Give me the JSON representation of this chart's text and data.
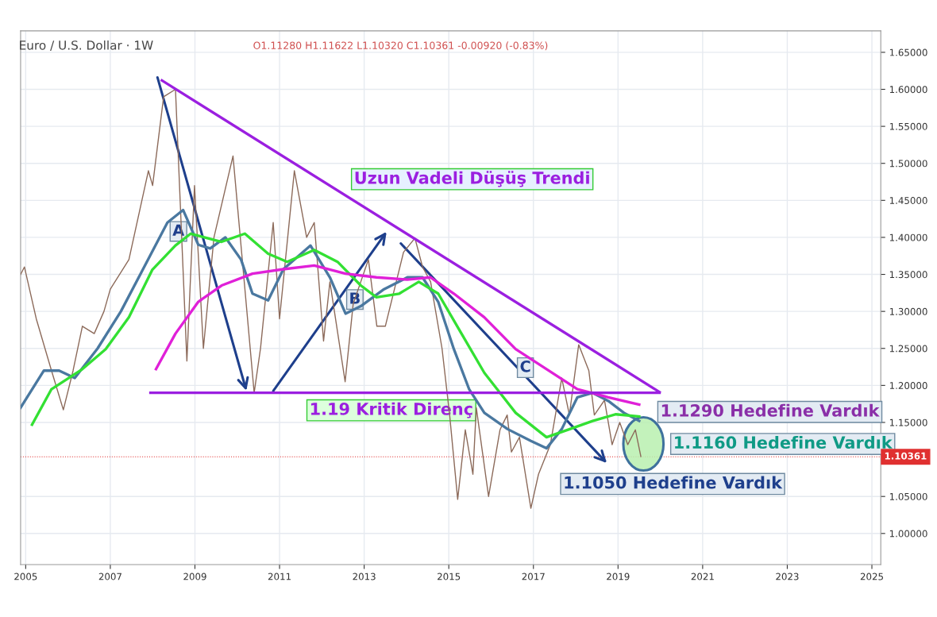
{
  "chart_data": {
    "type": "line",
    "title": "Euro / U.S. Dollar · 1W",
    "subtitle": "O1.11280 H1.11622 L1.10320 C1.10361 -0.00920 (-0.83%)",
    "series": [
      {
        "color": "#8c6a5a",
        "x": [
          2004.88,
          2004.97,
          2005.25,
          2005.61,
          2005.89,
          2006.12,
          2006.34,
          2006.62,
          2006.85,
          2007.0,
          2007.44,
          2007.9,
          2008.0,
          2008.26,
          2008.54,
          2008.81,
          2008.99,
          2009.2,
          2009.45,
          2009.9,
          2010.4,
          2010.55,
          2010.85,
          2011.0,
          2011.35,
          2011.64,
          2011.82,
          2012.04,
          2012.19,
          2012.55,
          2012.74,
          2013.1,
          2013.3,
          2013.5,
          2013.93,
          2014.2,
          2014.38,
          2014.57,
          2014.84,
          2015.02,
          2015.21,
          2015.39,
          2015.57,
          2015.65,
          2015.94,
          2016.21,
          2016.38,
          2016.48,
          2016.67,
          2016.94,
          2017.12,
          2017.4,
          2017.67,
          2017.85,
          2018.07,
          2018.31,
          2018.44,
          2018.68,
          2018.86,
          2019.04,
          2019.23,
          2019.41,
          2019.54
        ],
        "values": [
          1.35,
          1.36,
          1.29,
          1.22,
          1.167,
          1.22,
          1.28,
          1.27,
          1.3,
          1.33,
          1.37,
          1.49,
          1.47,
          1.59,
          1.6,
          1.233,
          1.47,
          1.25,
          1.4,
          1.51,
          1.19,
          1.25,
          1.42,
          1.29,
          1.49,
          1.4,
          1.42,
          1.26,
          1.34,
          1.205,
          1.31,
          1.37,
          1.28,
          1.28,
          1.38,
          1.399,
          1.36,
          1.34,
          1.25,
          1.16,
          1.046,
          1.14,
          1.08,
          1.17,
          1.05,
          1.14,
          1.16,
          1.11,
          1.13,
          1.034,
          1.08,
          1.12,
          1.21,
          1.16,
          1.255,
          1.22,
          1.16,
          1.18,
          1.12,
          1.15,
          1.12,
          1.14,
          1.104
        ]
      },
      {
        "color": "#4a78a0",
        "x": [
          2004.88,
          2005.43,
          2005.79,
          2006.16,
          2006.7,
          2007.25,
          2007.8,
          2008.35,
          2008.72,
          2009.08,
          2009.36,
          2009.72,
          2010.09,
          2010.36,
          2010.73,
          2011.09,
          2011.73,
          2012.19,
          2012.56,
          2012.92,
          2013.47,
          2014.02,
          2014.38,
          2014.75,
          2015.12,
          2015.48,
          2015.84,
          2016.39,
          2016.94,
          2017.31,
          2017.67,
          2018.04,
          2018.4,
          2018.77,
          2019.14,
          2019.5
        ],
        "values": [
          1.17,
          1.22,
          1.22,
          1.21,
          1.25,
          1.3,
          1.36,
          1.42,
          1.437,
          1.39,
          1.385,
          1.4,
          1.37,
          1.324,
          1.315,
          1.357,
          1.389,
          1.346,
          1.297,
          1.307,
          1.33,
          1.346,
          1.346,
          1.313,
          1.249,
          1.195,
          1.163,
          1.141,
          1.125,
          1.115,
          1.141,
          1.184,
          1.19,
          1.179,
          1.163,
          1.152
        ]
      },
      {
        "color": "#33e033",
        "x": [
          2005.15,
          2005.61,
          2006.34,
          2006.89,
          2007.44,
          2007.99,
          2008.54,
          2008.9,
          2009.63,
          2010.18,
          2010.73,
          2011.18,
          2011.82,
          2012.37,
          2012.92,
          2013.29,
          2013.83,
          2014.29,
          2014.75,
          2015.3,
          2015.84,
          2016.58,
          2017.31,
          2017.86,
          2018.4,
          2018.95,
          2019.5
        ],
        "values": [
          1.147,
          1.195,
          1.222,
          1.249,
          1.292,
          1.356,
          1.389,
          1.405,
          1.394,
          1.405,
          1.378,
          1.367,
          1.383,
          1.367,
          1.335,
          1.319,
          1.324,
          1.34,
          1.324,
          1.27,
          1.217,
          1.163,
          1.13,
          1.141,
          1.152,
          1.161,
          1.158
        ]
      },
      {
        "color": "#e020d8",
        "x": [
          2008.08,
          2008.54,
          2009.08,
          2009.63,
          2010.36,
          2011.09,
          2011.82,
          2012.56,
          2013.29,
          2014.02,
          2014.57,
          2015.12,
          2015.84,
          2016.58,
          2017.31,
          2018.04,
          2018.77,
          2019.5
        ],
        "values": [
          1.222,
          1.27,
          1.313,
          1.335,
          1.351,
          1.357,
          1.362,
          1.351,
          1.346,
          1.343,
          1.346,
          1.324,
          1.292,
          1.249,
          1.222,
          1.195,
          1.184,
          1.174
        ]
      },
      {
        "color": "#9b1fe0",
        "x": [
          2008.22,
          2019.98
        ],
        "values": [
          1.612,
          1.191
        ]
      },
      {
        "color": "#9b1fe0",
        "x": [
          2007.95,
          2019.98
        ],
        "values": [
          1.19,
          1.19
        ]
      }
    ],
    "annotations": [
      "Uzun Vadeli Düşüş Trendi",
      "1.19 Kritik Direnç",
      "1.1290 Hedefine Vardık",
      "1.1160 Hedefine Vardık",
      "1.1050 Hedefine Vardık",
      {
        "text": "A",
        "x": 2008.61,
        "y": 1.408
      },
      {
        "text": "B",
        "x": 2012.78,
        "y": 1.316
      },
      {
        "text": "C",
        "x": 2016.81,
        "y": 1.224
      }
    ],
    "ref_lines": [
      {
        "axis": "y",
        "value": 1.10361,
        "label": "1.10361",
        "color": "#e03030",
        "line_style": "dotted"
      }
    ],
    "xlim": [
      2004.88,
      2025.21
    ],
    "xticks": [
      {
        "value": 2005,
        "label": "2005"
      },
      2007,
      2009,
      2011,
      2013,
      2015,
      2017,
      2019,
      2021,
      2023,
      2025
    ],
    "ylim": [
      0.958,
      1.679
    ],
    "yticks": [
      {
        "value": 1.0,
        "label": "1.00000"
      },
      {
        "value": 1.05,
        "label": "1.05000"
      },
      {
        "value": 1.15,
        "label": "1.15000"
      },
      {
        "value": 1.2,
        "label": "1.20000"
      },
      {
        "value": 1.25,
        "label": "1.25000"
      },
      {
        "value": 1.3,
        "label": "1.30000"
      },
      {
        "value": 1.35,
        "label": "1.35000"
      },
      {
        "value": 1.4,
        "label": "1.40000"
      },
      {
        "value": 1.45,
        "label": "1.45000"
      },
      {
        "value": 1.5,
        "label": "1.50000"
      },
      {
        "value": 1.55,
        "label": "1.55000"
      },
      {
        "value": 1.6,
        "label": "1.60000"
      },
      {
        "value": 1.65,
        "label": "1.65000"
      }
    ],
    "grid": true,
    "marker": "none",
    "line_style": "solid"
  }
}
